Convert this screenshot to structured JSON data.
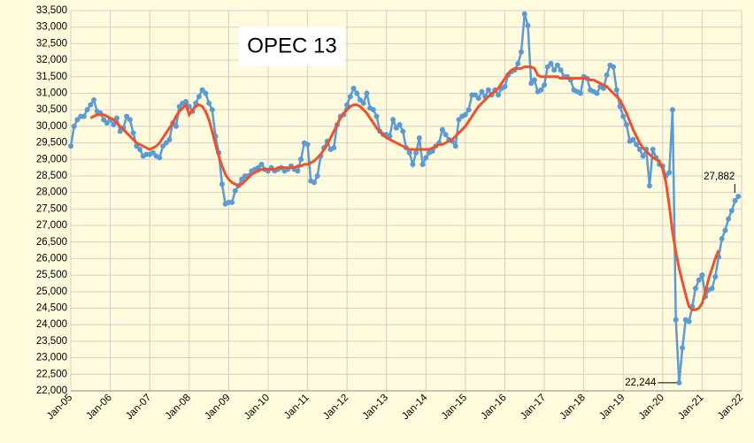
{
  "chart_data": {
    "type": "line",
    "title": "OPEC 13",
    "categories": [
      "Jan-05",
      null,
      null,
      null,
      null,
      null,
      null,
      null,
      null,
      null,
      null,
      null,
      "Jan-06",
      null,
      null,
      null,
      null,
      null,
      null,
      null,
      null,
      null,
      null,
      null,
      "Jan-07",
      null,
      null,
      null,
      null,
      null,
      null,
      null,
      null,
      null,
      null,
      null,
      "Jan-08",
      null,
      null,
      null,
      null,
      null,
      null,
      null,
      null,
      null,
      null,
      null,
      "Jan-09",
      null,
      null,
      null,
      null,
      null,
      null,
      null,
      null,
      null,
      null,
      null,
      "Jan-10",
      null,
      null,
      null,
      null,
      null,
      null,
      null,
      null,
      null,
      null,
      null,
      "Jan-11",
      null,
      null,
      null,
      null,
      null,
      null,
      null,
      null,
      null,
      null,
      null,
      "Jan-12",
      null,
      null,
      null,
      null,
      null,
      null,
      null,
      null,
      null,
      null,
      null,
      "Jan-13",
      null,
      null,
      null,
      null,
      null,
      null,
      null,
      null,
      null,
      null,
      null,
      "Jan-14",
      null,
      null,
      null,
      null,
      null,
      null,
      null,
      null,
      null,
      null,
      null,
      "Jan-15",
      null,
      null,
      null,
      null,
      null,
      null,
      null,
      null,
      null,
      null,
      null,
      "Jan-16",
      null,
      null,
      null,
      null,
      null,
      null,
      null,
      null,
      null,
      null,
      null,
      "Jan-17",
      null,
      null,
      null,
      null,
      null,
      null,
      null,
      null,
      null,
      null,
      null,
      "Jan-18",
      null,
      null,
      null,
      null,
      null,
      null,
      null,
      null,
      null,
      null,
      null,
      "Jan-19",
      null,
      null,
      null,
      null,
      null,
      null,
      null,
      null,
      null,
      null,
      null,
      "Jan-20",
      null,
      null,
      null,
      null,
      null,
      null,
      null,
      null,
      null,
      null,
      null,
      "Jan-21",
      null,
      null,
      null,
      null,
      null,
      null,
      null,
      null,
      null,
      null,
      null,
      "Jan-22"
    ],
    "series": [
      {
        "color": "#5b9bd5",
        "markers": true,
        "values": [
          29400,
          30000,
          30200,
          30300,
          30300,
          30500,
          30650,
          30800,
          30450,
          30400,
          30200,
          30100,
          30200,
          30050,
          30250,
          29850,
          29950,
          30300,
          30200,
          29800,
          29400,
          29300,
          29100,
          29150,
          29150,
          29200,
          29100,
          29050,
          29400,
          29500,
          29600,
          30100,
          30000,
          30600,
          30700,
          30750,
          30600,
          30450,
          30700,
          30900,
          31100,
          31000,
          30700,
          30500,
          29700,
          29200,
          28250,
          27650,
          27700,
          27700,
          28050,
          28200,
          28400,
          28500,
          28500,
          28650,
          28700,
          28750,
          28850,
          28700,
          28650,
          28750,
          28650,
          28700,
          28750,
          28650,
          28700,
          28800,
          28700,
          28650,
          29000,
          29500,
          29450,
          28350,
          28300,
          28500,
          29100,
          29350,
          29550,
          29300,
          29350,
          30050,
          30300,
          30350,
          30650,
          30900,
          31150,
          31000,
          30800,
          30700,
          31000,
          30550,
          30500,
          30300,
          29850,
          29750,
          29750,
          29700,
          30200,
          29950,
          30050,
          29850,
          29350,
          29200,
          28850,
          29200,
          29650,
          28850,
          29050,
          29200,
          29250,
          29400,
          29500,
          29900,
          29750,
          29600,
          29550,
          29400,
          30200,
          30300,
          30350,
          30500,
          30950,
          30950,
          30850,
          31050,
          30900,
          31100,
          30950,
          31100,
          30950,
          31150,
          31200,
          31550,
          31650,
          31700,
          31900,
          32250,
          33400,
          33050,
          31300,
          31400,
          31050,
          31100,
          31250,
          31800,
          31900,
          31700,
          31850,
          31700,
          31500,
          31500,
          31400,
          31100,
          31050,
          31000,
          31500,
          31450,
          31100,
          31050,
          31000,
          31200,
          31150,
          31550,
          31850,
          31800,
          31100,
          30600,
          30300,
          30050,
          29550,
          29600,
          29450,
          29300,
          29100,
          29300,
          28200,
          29300,
          29050,
          28850,
          28800,
          28500,
          28600,
          30500,
          24150,
          22244,
          23300,
          24150,
          24100,
          24550,
          25100,
          25350,
          25500,
          24850,
          25050,
          25100,
          25450,
          26050,
          26600,
          26850,
          27200,
          27450,
          27750,
          27882,
          null
        ]
      },
      {
        "color": "#f0502a",
        "markers": false,
        "values": [
          null,
          null,
          null,
          null,
          null,
          null,
          30250,
          30300,
          30350,
          30350,
          30350,
          30300,
          30250,
          30200,
          30100,
          30000,
          29900,
          29800,
          29700,
          29600,
          29500,
          29450,
          29400,
          29350,
          29300,
          29350,
          29400,
          29500,
          29650,
          29800,
          29950,
          30100,
          30300,
          30450,
          30550,
          30650,
          30350,
          30500,
          30600,
          30650,
          30600,
          30450,
          30200,
          29850,
          29450,
          29100,
          28800,
          28550,
          28400,
          28300,
          28250,
          28200,
          28250,
          28350,
          28450,
          28550,
          28600,
          28650,
          28700,
          28700,
          28700,
          28700,
          28700,
          28750,
          28750,
          28750,
          28750,
          28750,
          28750,
          28800,
          28800,
          28850,
          28850,
          28900,
          28950,
          29050,
          29150,
          29300,
          29450,
          29650,
          29850,
          30050,
          30250,
          30400,
          30500,
          30600,
          30650,
          30650,
          30600,
          30500,
          30400,
          30250,
          30100,
          29950,
          29850,
          29750,
          29650,
          29600,
          29550,
          29500,
          29450,
          29400,
          29350,
          29300,
          29300,
          29300,
          29300,
          29300,
          29300,
          29300,
          29350,
          29400,
          29450,
          29450,
          29500,
          29550,
          29600,
          29700,
          29800,
          29900,
          30000,
          30150,
          30300,
          30450,
          30600,
          30700,
          30800,
          30900,
          31000,
          31050,
          31150,
          31300,
          31450,
          31600,
          31700,
          31750,
          31750,
          31750,
          31800,
          31800,
          31800,
          31750,
          31550,
          31500,
          31500,
          31500,
          31500,
          31500,
          31500,
          31450,
          31450,
          31450,
          31450,
          31450,
          31450,
          31450,
          31450,
          31450,
          31400,
          31400,
          31350,
          31300,
          31250,
          31200,
          31100,
          31000,
          30900,
          30800,
          30600,
          30400,
          30150,
          29900,
          29700,
          29500,
          29350,
          29250,
          29150,
          29050,
          29000,
          28950,
          28700,
          28300,
          27600,
          26800,
          26200,
          25700,
          25300,
          24900,
          24550,
          24450,
          24450,
          24500,
          24650,
          25000,
          25400,
          25700,
          26000,
          26250,
          null,
          null,
          null,
          null,
          null,
          null,
          null
        ]
      }
    ],
    "annotations": [
      {
        "text": "27,882",
        "value": 27882
      },
      {
        "text": "22,244",
        "value": 22244
      }
    ],
    "ylim": [
      22000,
      33500
    ],
    "yticks": [
      {
        "value": 22000,
        "label": "22,000"
      },
      {
        "value": 22500,
        "label": "22,500"
      },
      {
        "value": 23000,
        "label": "23,000"
      },
      {
        "value": 23500,
        "label": "23,500"
      },
      {
        "value": 24000,
        "label": "24,000"
      },
      {
        "value": 24500,
        "label": "24,500"
      },
      {
        "value": 25000,
        "label": "25,000"
      },
      {
        "value": 25500,
        "label": "25,500"
      },
      {
        "value": 26000,
        "label": "26,000"
      },
      {
        "value": 26500,
        "label": "26,500"
      },
      {
        "value": 27000,
        "label": "27,000"
      },
      {
        "value": 27500,
        "label": "27,500"
      },
      {
        "value": 28000,
        "label": "28,000"
      },
      {
        "value": 28500,
        "label": "28,500"
      },
      {
        "value": 29000,
        "label": "29,000"
      },
      {
        "value": 29500,
        "label": "29,500"
      },
      {
        "value": 30000,
        "label": "30,000"
      },
      {
        "value": 30500,
        "label": "30,500"
      },
      {
        "value": 31000,
        "label": "31,000"
      },
      {
        "value": 31500,
        "label": "31,500"
      },
      {
        "value": 32000,
        "label": "32,000"
      },
      {
        "value": 32500,
        "label": "32,500"
      },
      {
        "value": 33000,
        "label": "33,000"
      },
      {
        "value": 33500,
        "label": "33,500"
      }
    ],
    "grid": true
  }
}
